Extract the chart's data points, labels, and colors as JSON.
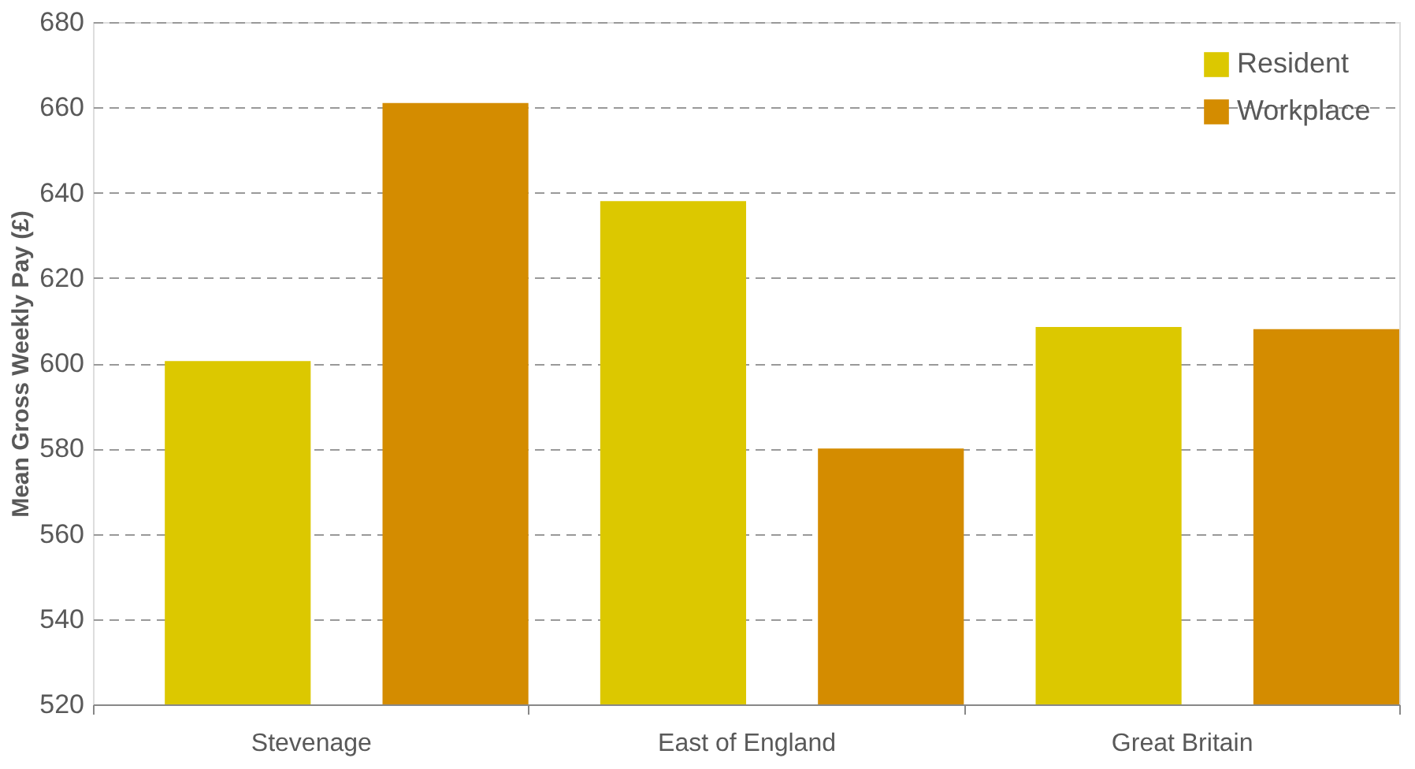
{
  "chart_data": {
    "type": "bar",
    "ylabel": "Mean Gross Weekly Pay (£)",
    "categories": [
      "Stevenage",
      "East of England",
      "Great Britain"
    ],
    "series": [
      {
        "name": "Resident",
        "color": "#dcc800",
        "values": [
          600.5,
          638,
          608.5
        ]
      },
      {
        "name": "Workplace",
        "color": "#d48c00",
        "values": [
          661,
          580,
          608
        ]
      }
    ],
    "ylim": [
      520,
      680
    ],
    "yticks": [
      520,
      540,
      560,
      580,
      600,
      620,
      640,
      660,
      680
    ],
    "grid": "y",
    "legend": "top right"
  }
}
